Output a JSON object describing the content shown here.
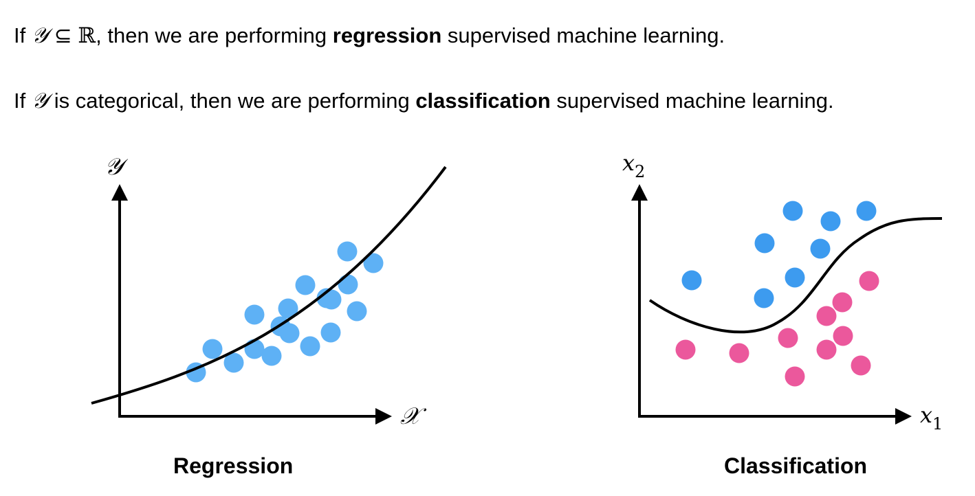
{
  "text": {
    "line1": {
      "prefix": "If ",
      "symbol_y": "𝒴",
      "subset": " ⊆ ",
      "reals": "ℝ",
      "middle": ", then we are performing ",
      "bold": "regression",
      "suffix": " supervised machine learning."
    },
    "line2": {
      "prefix": "If ",
      "symbol_y": "𝒴",
      "middle": " is categorical, then we are performing ",
      "bold": "classification",
      "suffix": " supervised machine learning."
    }
  },
  "regression": {
    "caption": "Regression",
    "y_axis_label": "𝒴",
    "x_axis_label": "𝒳",
    "point_color": "#5EB1F5"
  },
  "classification": {
    "caption": "Classification",
    "y_axis_label": "x",
    "y_axis_sub": "2",
    "x_axis_label": "x",
    "x_axis_sub": "1",
    "class_a_color": "#3D9BEF",
    "class_b_color": "#EB589C"
  }
}
